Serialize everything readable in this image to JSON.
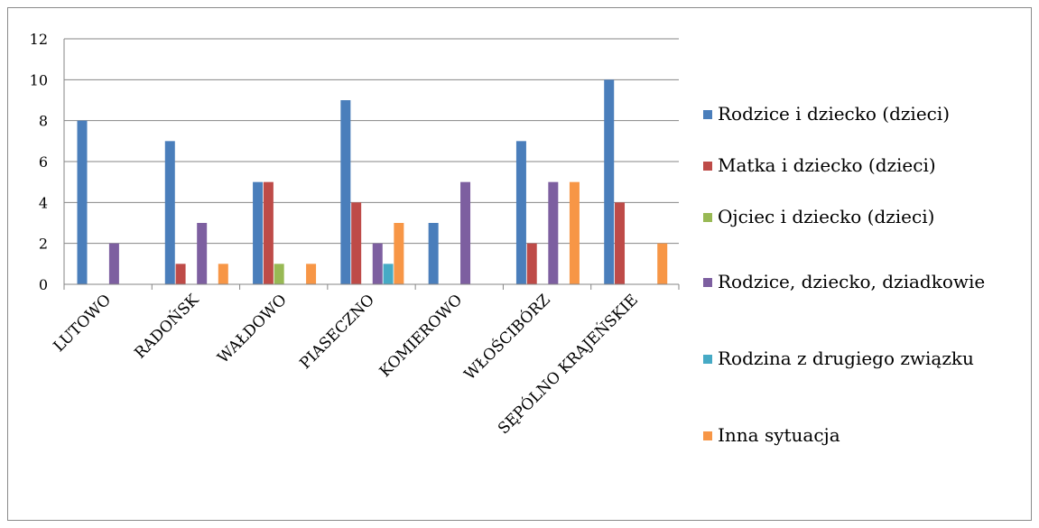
{
  "chart_data": {
    "type": "bar",
    "categories": [
      "LUTOWO",
      "RADOŃSK",
      "WAŁDOWO",
      "PIASECZNO",
      "KOMIEROWO",
      "WŁOŚCIBÓRZ",
      "SĘPÓLNO KRAJEŃSKIE"
    ],
    "series": [
      {
        "name": "Rodzice i dziecko (dzieci)",
        "color": "#4a7ebb",
        "values": [
          8,
          7,
          5,
          9,
          3,
          7,
          10
        ]
      },
      {
        "name": "Matka i dziecko (dzieci)",
        "color": "#be4b48",
        "values": [
          0,
          1,
          5,
          4,
          0,
          2,
          4
        ]
      },
      {
        "name": "Ojciec i dziecko (dzieci)",
        "color": "#98b954",
        "values": [
          0,
          0,
          1,
          0,
          0,
          0,
          0
        ]
      },
      {
        "name": "Rodzice, dziecko, dziadkowie",
        "color": "#7d5fa0",
        "values": [
          2,
          3,
          0,
          2,
          5,
          5,
          0
        ]
      },
      {
        "name": "Rodzina z drugiego związku",
        "color": "#46aac5",
        "values": [
          0,
          0,
          0,
          1,
          0,
          0,
          0
        ]
      },
      {
        "name": "Inna sytuacja",
        "color": "#f79646",
        "values": [
          0,
          1,
          1,
          3,
          0,
          5,
          2
        ]
      }
    ],
    "ylim": [
      0,
      12
    ],
    "yticks": [
      0,
      2,
      4,
      6,
      8,
      10,
      12
    ],
    "grid": true,
    "legend_position": "right"
  },
  "legend": {
    "items": [
      {
        "label": "Rodzice i dziecko (dzieci)",
        "color": "#4a7ebb"
      },
      {
        "label": "Matka i dziecko (dzieci)",
        "color": "#be4b48"
      },
      {
        "label": "Ojciec i dziecko (dzieci)",
        "color": "#98b954"
      },
      {
        "label": "Rodzice, dziecko, dziadkowie",
        "color": "#7d5fa0"
      },
      {
        "label": "Rodzina z drugiego związku",
        "color": "#46aac5"
      },
      {
        "label": "Inna sytuacja",
        "color": "#f79646"
      }
    ]
  }
}
